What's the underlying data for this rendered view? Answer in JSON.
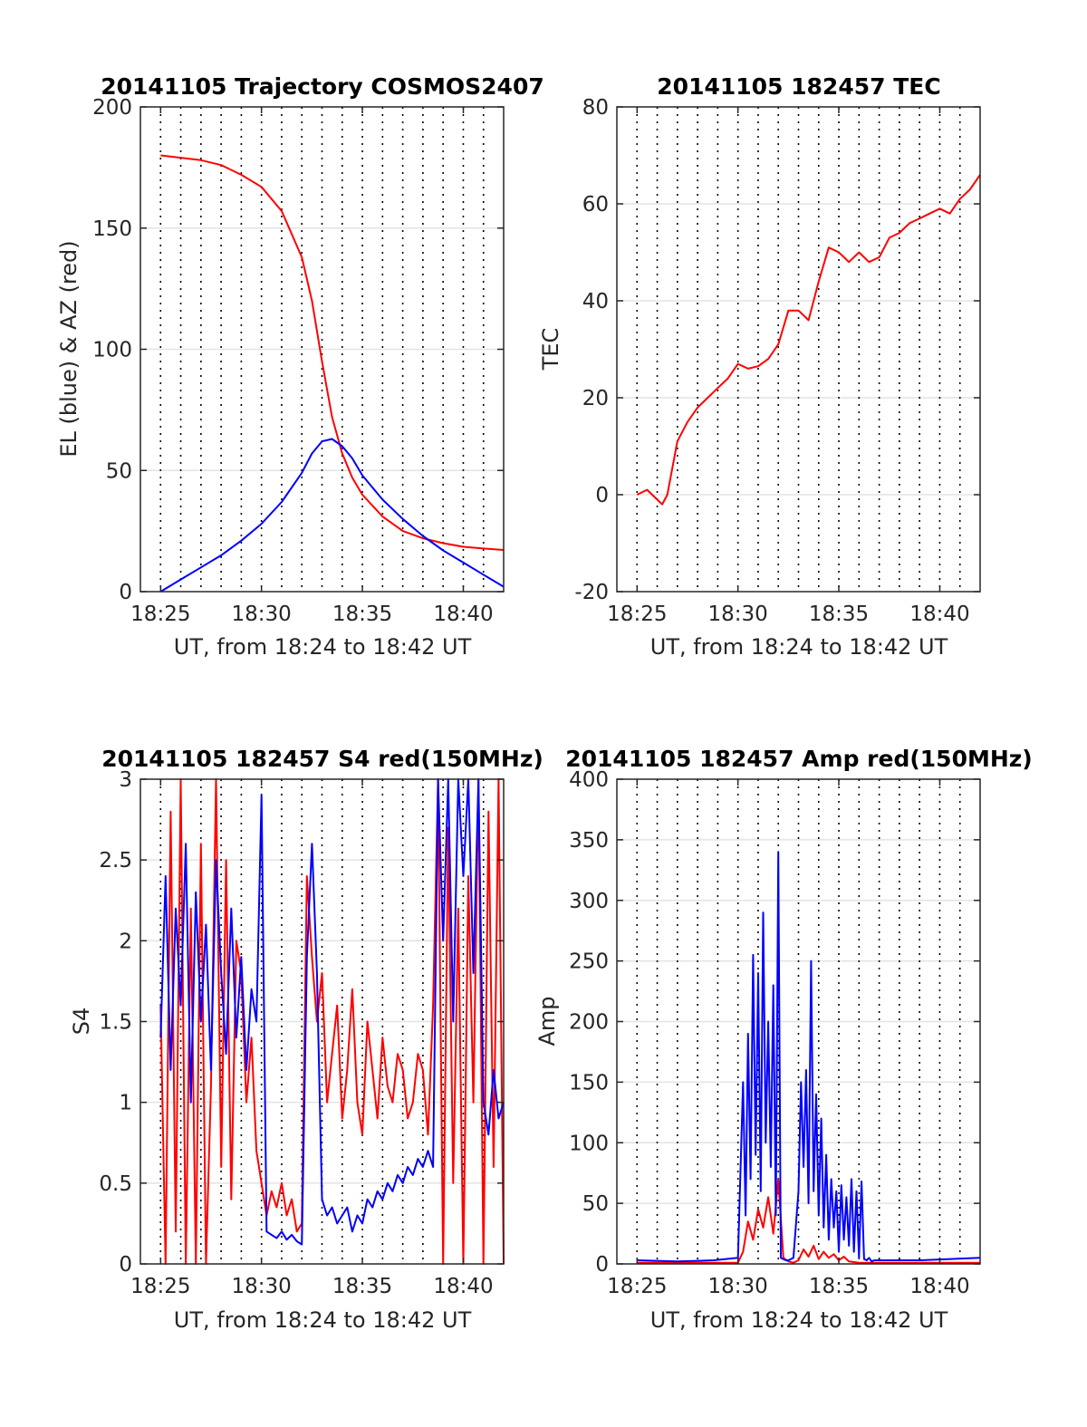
{
  "chart_data": [
    {
      "type": "line",
      "title": "20141105 Trajectory COSMOS2407",
      "xlabel": "UT, from 18:24 to 18:42 UT",
      "ylabel": "EL (blue) & AZ (red)",
      "xlim": [
        18.4,
        18.7
      ],
      "x_ticks": [
        {
          "v": 18.4167,
          "label": "18:25"
        },
        {
          "v": 18.5,
          "label": "18:30"
        },
        {
          "v": 18.5833,
          "label": "18:35"
        },
        {
          "v": 18.6667,
          "label": "18:40"
        }
      ],
      "ylim": [
        0,
        200
      ],
      "y_ticks": [
        0,
        50,
        100,
        150,
        200
      ],
      "grid": true,
      "series": [
        {
          "color": "#ff0000",
          "x": [
            18.4167,
            18.45,
            18.4667,
            18.4833,
            18.5,
            18.5167,
            18.5333,
            18.5417,
            18.55,
            18.5583,
            18.5667,
            18.575,
            18.5833,
            18.6,
            18.6167,
            18.6333,
            18.65,
            18.6667,
            18.6833,
            18.7
          ],
          "values": [
            180,
            178,
            176,
            172,
            167,
            157,
            138,
            120,
            95,
            72,
            57,
            47,
            40,
            31,
            25,
            22,
            20,
            18.5,
            17.8,
            17.2
          ]
        },
        {
          "color": "#0000ff",
          "x": [
            18.4167,
            18.4333,
            18.45,
            18.4667,
            18.4833,
            18.5,
            18.5167,
            18.5333,
            18.5417,
            18.55,
            18.5583,
            18.5667,
            18.575,
            18.5833,
            18.6,
            18.6167,
            18.6333,
            18.65,
            18.6667,
            18.6833,
            18.7
          ],
          "values": [
            0,
            5,
            10,
            15,
            21,
            28,
            37,
            49,
            57,
            62,
            63,
            60,
            55,
            48,
            38,
            30,
            23,
            17,
            12,
            7,
            2
          ]
        }
      ]
    },
    {
      "type": "line",
      "title": "20141105 182457 TEC",
      "xlabel": "UT, from 18:24 to 18:42 UT",
      "ylabel": "TEC",
      "xlim": [
        18.4,
        18.7
      ],
      "x_ticks": [
        {
          "v": 18.4167,
          "label": "18:25"
        },
        {
          "v": 18.5,
          "label": "18:30"
        },
        {
          "v": 18.5833,
          "label": "18:35"
        },
        {
          "v": 18.6667,
          "label": "18:40"
        }
      ],
      "ylim": [
        -20,
        80
      ],
      "y_ticks": [
        -20,
        0,
        20,
        40,
        60,
        80
      ],
      "grid": true,
      "series": [
        {
          "color": "#ff0000",
          "x": [
            18.4167,
            18.425,
            18.4333,
            18.4375,
            18.4417,
            18.45,
            18.4583,
            18.4667,
            18.475,
            18.4833,
            18.4917,
            18.5,
            18.5083,
            18.5167,
            18.525,
            18.5333,
            18.5417,
            18.55,
            18.5583,
            18.5667,
            18.575,
            18.5833,
            18.5917,
            18.6,
            18.6083,
            18.6167,
            18.625,
            18.6333,
            18.6417,
            18.65,
            18.6583,
            18.6667,
            18.675,
            18.6833,
            18.6917,
            18.7
          ],
          "values": [
            0,
            1,
            -1,
            -2,
            0,
            11,
            15,
            18,
            20,
            22,
            24,
            27,
            26,
            26.5,
            28,
            31,
            38,
            38,
            36,
            44,
            51,
            50,
            48,
            50,
            48,
            49,
            53,
            54,
            56,
            57,
            58,
            59,
            58,
            61,
            63,
            66
          ]
        }
      ]
    },
    {
      "type": "line",
      "title": "20141105 182457 S4 red(150MHz)",
      "xlabel": "UT, from 18:24 to 18:42 UT",
      "ylabel": "S4",
      "xlim": [
        18.4,
        18.7
      ],
      "x_ticks": [
        {
          "v": 18.4167,
          "label": "18:25"
        },
        {
          "v": 18.5,
          "label": "18:30"
        },
        {
          "v": 18.5833,
          "label": "18:35"
        },
        {
          "v": 18.6667,
          "label": "18:40"
        }
      ],
      "ylim": [
        0,
        3
      ],
      "y_ticks": [
        0,
        0.5,
        1,
        1.5,
        2,
        2.5,
        3
      ],
      "y_tick_labels": [
        "0",
        "0.5",
        "1",
        "1.5",
        "2",
        "2.5",
        "3"
      ],
      "grid": true,
      "series": [
        {
          "color": "#ff0000",
          "x": [
            18.4167,
            18.4208,
            18.425,
            18.4292,
            18.4333,
            18.4375,
            18.4417,
            18.4458,
            18.45,
            18.4542,
            18.4583,
            18.4625,
            18.4667,
            18.4708,
            18.475,
            18.4792,
            18.4833,
            18.4875,
            18.4917,
            18.4958,
            18.5,
            18.5042,
            18.5083,
            18.5125,
            18.5167,
            18.5208,
            18.525,
            18.5292,
            18.5333,
            18.5375,
            18.5417,
            18.5458,
            18.55,
            18.5542,
            18.5583,
            18.5625,
            18.5667,
            18.5708,
            18.575,
            18.5792,
            18.5833,
            18.5875,
            18.5917,
            18.5958,
            18.6,
            18.6042,
            18.6083,
            18.6125,
            18.6167,
            18.6208,
            18.625,
            18.6292,
            18.6333,
            18.6375,
            18.6417,
            18.6458,
            18.65,
            18.6542,
            18.6583,
            18.6625,
            18.6667,
            18.6708,
            18.675,
            18.6792,
            18.6833,
            18.6875,
            18.6917,
            18.6958,
            18.7
          ],
          "values": [
            1.6,
            0,
            2.8,
            0.2,
            3,
            0,
            2.2,
            0,
            2.6,
            0,
            1.1,
            3,
            0.6,
            2.5,
            0.4,
            2.0,
            1.8,
            1.0,
            1.4,
            0.7,
            0.5,
            0.3,
            0.45,
            0.35,
            0.5,
            0.3,
            0.4,
            0.2,
            0.25,
            2.4,
            1.9,
            1.5,
            1.8,
            1.0,
            1.3,
            1.6,
            0.9,
            1.2,
            1.7,
            1.0,
            0.8,
            1.5,
            1.2,
            0.9,
            1.4,
            1.1,
            1.0,
            1.3,
            1.2,
            0.9,
            1.0,
            1.3,
            1.2,
            0.8,
            1.6,
            3,
            0,
            2.7,
            0.5,
            2.2,
            0,
            2.4,
            1.0,
            3,
            0,
            2.8,
            0.6,
            3,
            0
          ]
        },
        {
          "color": "#0000ff",
          "x": [
            18.4167,
            18.4208,
            18.425,
            18.4292,
            18.4333,
            18.4375,
            18.4417,
            18.4458,
            18.45,
            18.4542,
            18.4583,
            18.4625,
            18.4667,
            18.4708,
            18.475,
            18.4792,
            18.4833,
            18.4875,
            18.4917,
            18.4958,
            18.5,
            18.5042,
            18.5083,
            18.5125,
            18.5167,
            18.5208,
            18.525,
            18.5292,
            18.5333,
            18.5375,
            18.5417,
            18.5458,
            18.55,
            18.5542,
            18.5583,
            18.5625,
            18.5667,
            18.5708,
            18.575,
            18.5792,
            18.5833,
            18.5875,
            18.5917,
            18.5958,
            18.6,
            18.6042,
            18.6083,
            18.6125,
            18.6167,
            18.6208,
            18.625,
            18.6292,
            18.6333,
            18.6375,
            18.6417,
            18.6458,
            18.65,
            18.6542,
            18.6583,
            18.6625,
            18.6667,
            18.6708,
            18.675,
            18.6792,
            18.6833,
            18.6875,
            18.6917,
            18.6958,
            18.7
          ],
          "values": [
            1.4,
            2.4,
            1.2,
            2.2,
            1.6,
            2.6,
            1.0,
            2.3,
            1.5,
            2.1,
            1.2,
            2.5,
            1.8,
            1.3,
            2.2,
            1.4,
            1.9,
            1.2,
            1.7,
            1.5,
            2.9,
            0.2,
            0.18,
            0.16,
            0.2,
            0.15,
            0.18,
            0.14,
            0.12,
            1.9,
            2.6,
            1.8,
            0.4,
            0.3,
            0.35,
            0.25,
            0.3,
            0.35,
            0.2,
            0.3,
            0.25,
            0.4,
            0.35,
            0.45,
            0.4,
            0.5,
            0.45,
            0.55,
            0.5,
            0.6,
            0.55,
            0.65,
            0.6,
            0.7,
            0.6,
            3,
            2.0,
            3,
            1.5,
            3,
            2.4,
            3,
            1.8,
            3,
            1.0,
            0.8,
            1.2,
            0.9,
            1.0
          ]
        }
      ]
    },
    {
      "type": "line",
      "title": "20141105 182457 Amp red(150MHz)",
      "xlabel": "UT, from 18:24 to 18:42 UT",
      "ylabel": "Amp",
      "xlim": [
        18.4,
        18.7
      ],
      "x_ticks": [
        {
          "v": 18.4167,
          "label": "18:25"
        },
        {
          "v": 18.5,
          "label": "18:30"
        },
        {
          "v": 18.5833,
          "label": "18:35"
        },
        {
          "v": 18.6667,
          "label": "18:40"
        }
      ],
      "ylim": [
        0,
        400
      ],
      "y_ticks": [
        0,
        50,
        100,
        150,
        200,
        250,
        300,
        350,
        400
      ],
      "grid": true,
      "series": [
        {
          "color": "#ff0000",
          "x": [
            18.4167,
            18.45,
            18.5,
            18.5042,
            18.5083,
            18.5125,
            18.5167,
            18.5208,
            18.525,
            18.5292,
            18.5333,
            18.5375,
            18.5417,
            18.5458,
            18.55,
            18.5542,
            18.5583,
            18.5625,
            18.5667,
            18.5708,
            18.575,
            18.5792,
            18.5833,
            18.5875,
            18.5917,
            18.6,
            18.65,
            18.7
          ],
          "values": [
            1,
            1,
            1,
            10,
            35,
            20,
            45,
            30,
            55,
            25,
            70,
            5,
            2,
            1,
            3,
            12,
            6,
            15,
            4,
            10,
            5,
            8,
            3,
            6,
            2,
            1,
            1,
            1
          ]
        },
        {
          "color": "#0000ff",
          "x": [
            18.4167,
            18.45,
            18.48,
            18.5,
            18.5042,
            18.5063,
            18.5083,
            18.5104,
            18.5125,
            18.5146,
            18.5167,
            18.5188,
            18.5208,
            18.5229,
            18.525,
            18.5271,
            18.5292,
            18.5313,
            18.5333,
            18.5354,
            18.5375,
            18.5396,
            18.5417,
            18.5458,
            18.55,
            18.5521,
            18.5542,
            18.5563,
            18.5583,
            18.5604,
            18.5625,
            18.5646,
            18.5667,
            18.5688,
            18.5708,
            18.5729,
            18.575,
            18.5771,
            18.5792,
            18.5813,
            18.5833,
            18.5854,
            18.5875,
            18.5896,
            18.5917,
            18.5938,
            18.5958,
            18.5979,
            18.6,
            18.6021,
            18.6042,
            18.6063,
            18.6083,
            18.6104,
            18.6125,
            18.6167,
            18.65,
            18.7
          ],
          "values": [
            3,
            2,
            3,
            5,
            150,
            40,
            190,
            70,
            255,
            90,
            240,
            60,
            290,
            100,
            200,
            80,
            230,
            40,
            340,
            5,
            4,
            3,
            3,
            5,
            60,
            150,
            80,
            160,
            50,
            250,
            60,
            140,
            40,
            120,
            30,
            90,
            20,
            70,
            30,
            60,
            10,
            65,
            20,
            55,
            15,
            70,
            10,
            60,
            5,
            68,
            4,
            3,
            5,
            2,
            3,
            3,
            3,
            5
          ]
        }
      ]
    }
  ]
}
